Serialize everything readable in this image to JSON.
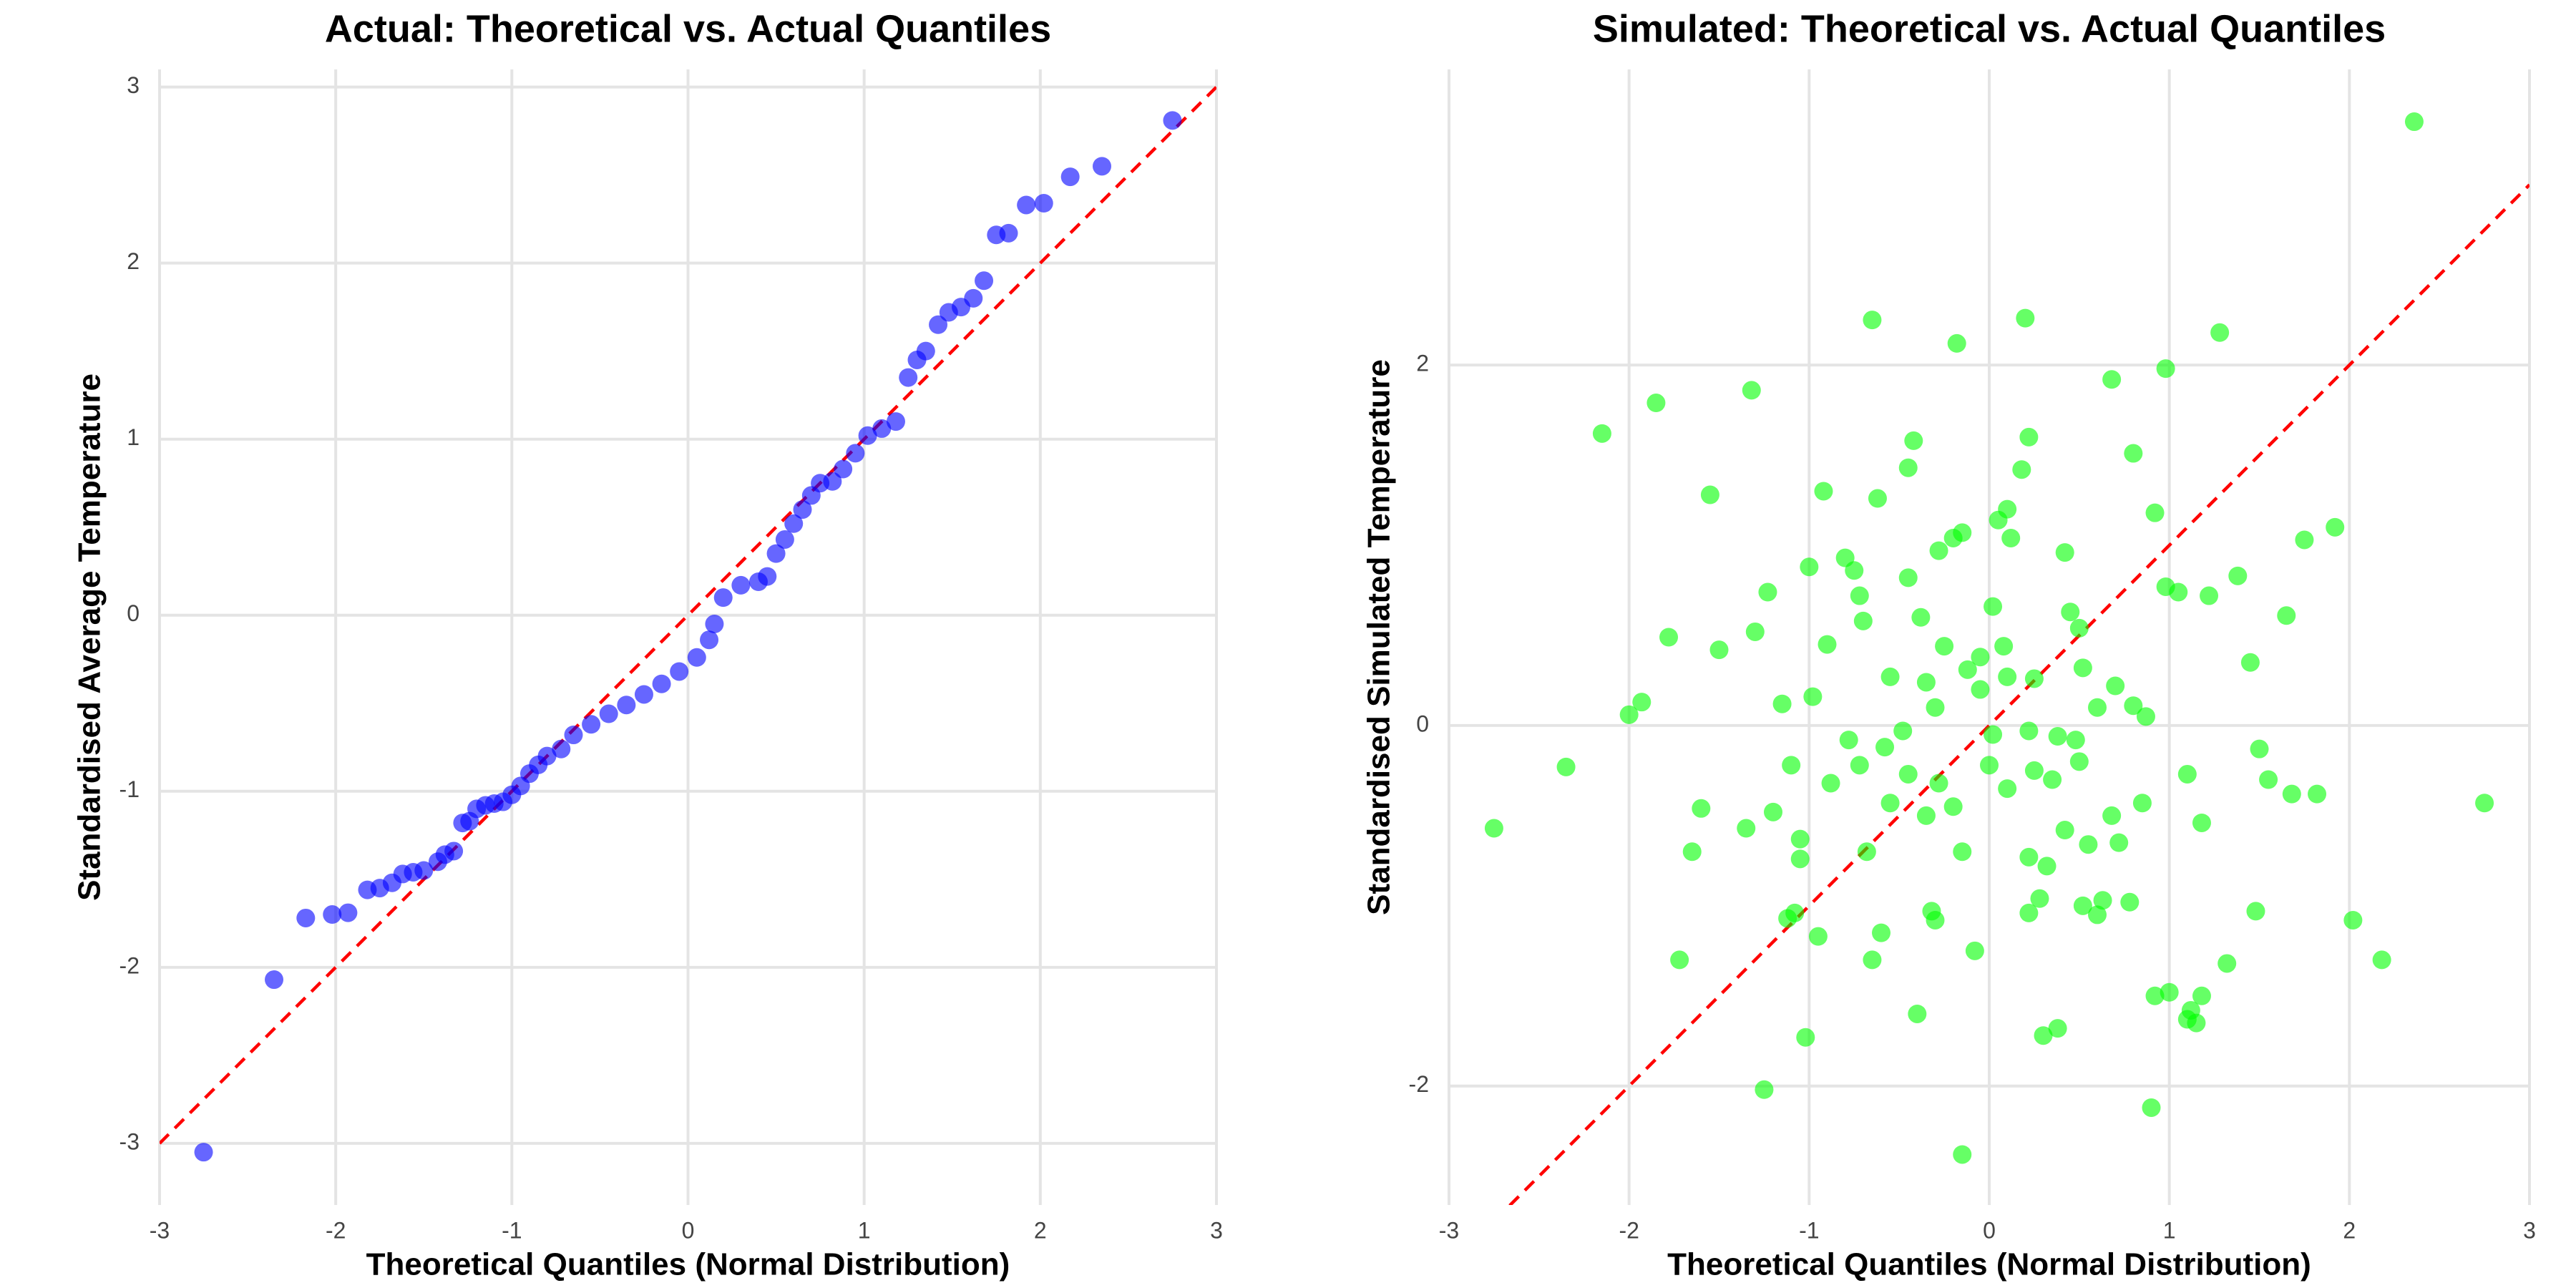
{
  "chart_data": [
    {
      "type": "scatter",
      "title": "Actual: Theoretical vs. Actual Quantiles",
      "x_label": "Theoretical Quantiles (Normal Distribution)",
      "y_label": "Standardised Average Temperature",
      "color": "#0000ff",
      "opacity": 0.6,
      "grid": true,
      "xlim": [
        -3,
        3
      ],
      "ylim": [
        -3.35,
        3.1
      ],
      "xticks": [
        -3,
        -2,
        -1,
        0,
        1,
        2,
        3
      ],
      "yticks": [
        -3,
        -2,
        -1,
        0,
        1,
        2,
        3
      ],
      "reference_line": {
        "slope": 1,
        "intercept": 0,
        "color": "#ff0000"
      },
      "x": [
        -2.75,
        -2.35,
        -2.17,
        -2.02,
        -1.93,
        -1.82,
        -1.75,
        -1.68,
        -1.62,
        -1.56,
        -1.5,
        -1.42,
        -1.38,
        -1.33,
        -1.28,
        -1.24,
        -1.2,
        -1.15,
        -1.1,
        -1.05,
        -1.0,
        -0.95,
        -0.9,
        -0.85,
        -0.8,
        -0.72,
        -0.65,
        -0.55,
        -0.45,
        -0.35,
        -0.25,
        -0.15,
        -0.05,
        0.05,
        0.12,
        0.15,
        0.2,
        0.3,
        0.4,
        0.45,
        0.5,
        0.55,
        0.6,
        0.65,
        0.7,
        0.75,
        0.82,
        0.88,
        0.95,
        1.02,
        1.1,
        1.18,
        1.25,
        1.3,
        1.35,
        1.42,
        1.48,
        1.55,
        1.62,
        1.68,
        1.75,
        1.82,
        1.92,
        2.02,
        2.17,
        2.35,
        2.75
      ],
      "y": [
        -3.05,
        -2.07,
        -1.72,
        -1.7,
        -1.69,
        -1.56,
        -1.55,
        -1.52,
        -1.47,
        -1.46,
        -1.45,
        -1.4,
        -1.36,
        -1.34,
        -1.18,
        -1.17,
        -1.1,
        -1.08,
        -1.07,
        -1.06,
        -1.02,
        -0.97,
        -0.9,
        -0.85,
        -0.8,
        -0.76,
        -0.68,
        -0.62,
        -0.56,
        -0.51,
        -0.45,
        -0.39,
        -0.32,
        -0.24,
        -0.14,
        -0.05,
        0.1,
        0.17,
        0.19,
        0.22,
        0.35,
        0.43,
        0.52,
        0.6,
        0.68,
        0.75,
        0.76,
        0.83,
        0.92,
        1.02,
        1.06,
        1.1,
        1.35,
        1.45,
        1.5,
        1.65,
        1.72,
        1.75,
        1.8,
        1.9,
        2.16,
        2.17,
        2.33,
        2.34,
        2.49,
        2.55,
        2.81
      ]
    },
    {
      "type": "scatter",
      "title": "Simulated: Theoretical vs. Actual Quantiles",
      "x_label": "Theoretical Quantiles (Normal Distribution)",
      "y_label": "Standardised Simulated Temperature",
      "color": "#00ff00",
      "opacity": 0.6,
      "grid": true,
      "xlim": [
        -3,
        3
      ],
      "ylim": [
        -2.66,
        3.64
      ],
      "xticks": [
        -3,
        -2,
        -1,
        0,
        1,
        2,
        3
      ],
      "yticks": [
        -2,
        0,
        2
      ],
      "reference_line": {
        "slope": 1,
        "intercept": 0,
        "color": "#ff0000"
      },
      "x": [
        2.36,
        1.28,
        -0.65,
        0.2,
        -0.18,
        0.98,
        -1.85,
        -1.32,
        0.68,
        -2.15,
        0.22,
        -0.42,
        0.8,
        -0.45,
        0.18,
        -1.55,
        -0.92,
        -0.62,
        0.1,
        0.05,
        0.92,
        1.92,
        1.75,
        -0.15,
        -0.2,
        0.12,
        -0.28,
        0.42,
        -0.8,
        -0.75,
        -1.0,
        1.38,
        0.98,
        1.05,
        1.22,
        -1.23,
        -0.45,
        -0.72,
        -1.78,
        -1.5,
        -1.3,
        -0.9,
        -0.7,
        -0.38,
        0.02,
        0.45,
        0.5,
        0.08,
        -0.25,
        -0.05,
        -1.15,
        -2.0,
        -1.93,
        -0.98,
        -0.55,
        -0.35,
        0.1,
        0.25,
        0.52,
        0.6,
        0.7,
        0.8,
        0.87,
        1.45,
        1.65,
        -0.12,
        -0.3,
        -0.05,
        0.02,
        0.22,
        0.38,
        0.48,
        -0.48,
        -0.58,
        -0.78,
        -0.88,
        -0.72,
        -1.1,
        -2.35,
        -2.75,
        -1.6,
        -1.65,
        -1.35,
        -1.2,
        -1.05,
        -1.05,
        -0.45,
        -0.28,
        -0.2,
        0.0,
        0.1,
        0.25,
        0.35,
        0.5,
        0.42,
        0.55,
        0.72,
        0.68,
        0.85,
        1.1,
        1.18,
        1.55,
        1.68,
        1.82,
        1.5,
        2.75,
        -0.55,
        -0.35,
        -0.15,
        0.22,
        0.32,
        -0.68,
        0.28,
        0.22,
        0.52,
        0.63,
        0.6,
        0.78,
        1.48,
        2.02,
        2.18,
        1.32,
        -1.72,
        -1.12,
        -1.08,
        -0.95,
        -0.65,
        -0.6,
        -0.32,
        -0.3,
        -0.08,
        0.92,
        1.0,
        1.12,
        1.18,
        1.1,
        1.15,
        -0.4,
        0.3,
        0.38,
        -1.02,
        -1.25,
        0.9,
        -0.15
      ],
      "y": [
        3.35,
        2.18,
        2.25,
        2.26,
        2.12,
        1.98,
        1.79,
        1.86,
        1.92,
        1.62,
        1.6,
        1.58,
        1.51,
        1.43,
        1.42,
        1.28,
        1.3,
        1.26,
        1.2,
        1.14,
        1.18,
        1.1,
        1.03,
        1.07,
        1.04,
        1.04,
        0.97,
        0.96,
        0.93,
        0.86,
        0.88,
        0.83,
        0.77,
        0.74,
        0.72,
        0.74,
        0.82,
        0.72,
        0.49,
        0.42,
        0.52,
        0.45,
        0.58,
        0.6,
        0.66,
        0.63,
        0.54,
        0.44,
        0.44,
        0.38,
        0.12,
        0.06,
        0.13,
        0.16,
        0.27,
        0.24,
        0.27,
        0.26,
        0.32,
        0.1,
        0.22,
        0.11,
        0.05,
        0.35,
        0.61,
        0.31,
        0.1,
        0.2,
        -0.05,
        -0.03,
        -0.06,
        -0.08,
        -0.03,
        -0.12,
        -0.08,
        -0.32,
        -0.22,
        -0.22,
        -0.23,
        -0.57,
        -0.46,
        -0.7,
        -0.57,
        -0.48,
        -0.63,
        -0.74,
        -0.27,
        -0.32,
        -0.45,
        -0.22,
        -0.35,
        -0.25,
        -0.3,
        -0.2,
        -0.58,
        -0.66,
        -0.65,
        -0.5,
        -0.43,
        -0.27,
        -0.54,
        -0.3,
        -0.38,
        -0.38,
        -0.13,
        -0.43,
        -0.43,
        -0.5,
        -0.7,
        -0.73,
        -0.78,
        -0.7,
        -0.96,
        -1.04,
        -1.0,
        -0.97,
        -1.05,
        -0.98,
        -1.03,
        -1.08,
        -1.3,
        -1.32,
        -1.3,
        -1.07,
        -1.04,
        -1.17,
        -1.3,
        -1.15,
        -1.03,
        -1.08,
        -1.25,
        -1.5,
        -1.48,
        -1.58,
        -1.5,
        -1.63,
        -1.65,
        -1.6,
        -1.72,
        -1.68,
        -1.73,
        -2.02,
        -2.12,
        -2.38
      ]
    }
  ]
}
